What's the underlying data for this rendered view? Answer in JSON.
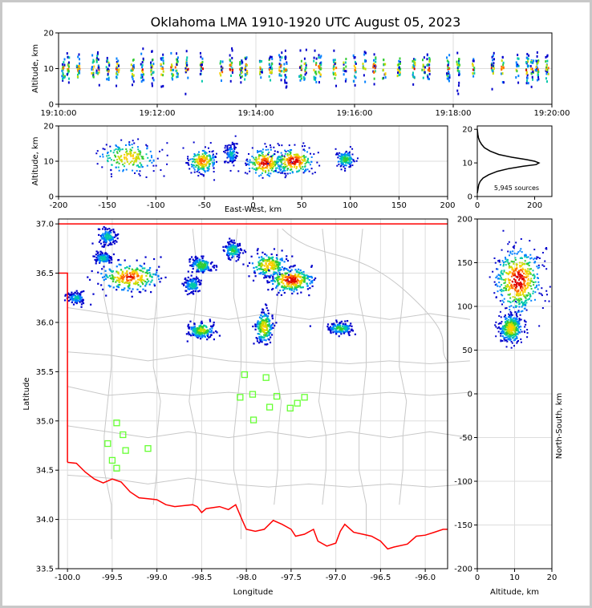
{
  "title": "Oklahoma LMA 1910-1920 UTC August 05, 2023",
  "colors": {
    "frame": "#c8c8c8",
    "axis": "#000000",
    "grid": "#dddddd",
    "state_border": "#ff0000",
    "county_lines": "#c8c8c8",
    "stations": "#66ff33",
    "density_scale": [
      "#0000cc",
      "#0080ff",
      "#00c8aa",
      "#33cc33",
      "#c8dc00",
      "#ffcc00",
      "#ff6600",
      "#dd0000"
    ]
  },
  "chart_data": [
    {
      "id": "time_height",
      "type": "scatter",
      "xlabel": "",
      "ylabel": "Altitude, km",
      "xlim": [
        "19:10:00",
        "19:20:00"
      ],
      "ylim": [
        0,
        20
      ],
      "x_ticks": [
        "19:10:00",
        "19:12:00",
        "19:14:00",
        "19:16:00",
        "19:18:00",
        "19:20:00"
      ],
      "y_ticks": [
        0,
        10,
        20
      ],
      "grid": true,
      "activity_columns_min_after_1910": [
        0.1,
        0.2,
        0.4,
        0.7,
        0.8,
        1.0,
        1.2,
        1.5,
        1.7,
        1.9,
        2.1,
        2.3,
        2.4,
        2.6,
        2.9,
        3.3,
        3.5,
        3.7,
        3.8,
        4.1,
        4.3,
        4.5,
        4.6,
        4.9,
        5.0,
        5.2,
        5.3,
        5.6,
        5.8,
        6.0,
        6.2,
        6.4,
        6.6,
        6.9,
        7.2,
        7.4,
        7.5,
        7.9,
        8.1,
        8.4,
        8.8,
        9.0,
        9.3,
        9.5,
        9.6,
        9.7,
        9.9
      ],
      "altitude_center_km": 10,
      "altitude_spread_km": 3.5
    },
    {
      "id": "ew_height",
      "type": "heatmap",
      "xlabel": "East-West, km",
      "ylabel": "Altitude, km",
      "xlim": [
        -200,
        200
      ],
      "ylim": [
        0,
        20
      ],
      "x_ticks": [
        -200,
        -150,
        -100,
        -50,
        0,
        50,
        100,
        150,
        200
      ],
      "y_ticks": [
        0,
        10,
        20
      ],
      "grid": true,
      "clusters": [
        {
          "x_center": -128,
          "x_spread": 16,
          "alt_center": 11,
          "alt_spread": 2.2,
          "peak": 0.7
        },
        {
          "x_center": -52,
          "x_spread": 7,
          "alt_center": 10,
          "alt_spread": 1.6,
          "peak": 0.85
        },
        {
          "x_center": -22,
          "x_spread": 3,
          "alt_center": 12,
          "alt_spread": 1.5,
          "peak": 0.3
        },
        {
          "x_center": 12,
          "x_spread": 9,
          "alt_center": 9.5,
          "alt_spread": 2.0,
          "peak": 0.95
        },
        {
          "x_center": 42,
          "x_spread": 10,
          "alt_center": 10,
          "alt_spread": 1.8,
          "peak": 1.0
        },
        {
          "x_center": 95,
          "x_spread": 5,
          "alt_center": 10.5,
          "alt_spread": 1.2,
          "peak": 0.45
        }
      ]
    },
    {
      "id": "altitude_histogram",
      "type": "line",
      "xlim": [
        0,
        260
      ],
      "ylim": [
        0,
        21
      ],
      "x_ticks": [
        0,
        200
      ],
      "y_ticks": [
        0,
        10,
        20
      ],
      "annotation": "5,945 sources",
      "x": [
        0,
        2,
        3,
        5,
        10,
        20,
        40,
        70,
        110,
        160,
        205,
        215,
        200,
        170,
        120,
        75,
        45,
        25,
        15,
        8,
        4,
        2,
        0
      ],
      "y": [
        1.0,
        2.0,
        2.5,
        3.5,
        4.5,
        5.5,
        6.5,
        7.5,
        8.3,
        9.0,
        9.5,
        10.0,
        10.5,
        11.0,
        11.7,
        12.5,
        13.5,
        14.5,
        15.5,
        16.5,
        17.5,
        18.5,
        20.0
      ]
    },
    {
      "id": "plan_view",
      "type": "heatmap",
      "xlabel": "Longitude",
      "ylabel": "Latitude",
      "xlim": [
        -100.1,
        -95.75
      ],
      "ylim": [
        33.5,
        37.05
      ],
      "x_ticks": [
        -100.0,
        -99.5,
        -99.0,
        -98.5,
        -98.0,
        -97.5,
        -97.0,
        -96.5,
        -96.0
      ],
      "y_ticks": [
        33.5,
        34.0,
        34.5,
        35.0,
        35.5,
        36.0,
        36.5,
        37.0
      ],
      "grid": true,
      "clusters": [
        {
          "lon": -99.3,
          "lat": 36.46,
          "lon_spread": 0.17,
          "lat_spread": 0.07,
          "peak": 0.9
        },
        {
          "lon": -99.55,
          "lat": 36.87,
          "lon_spread": 0.05,
          "lat_spread": 0.04,
          "peak": 0.35
        },
        {
          "lon": -99.6,
          "lat": 36.65,
          "lon_spread": 0.05,
          "lat_spread": 0.03,
          "peak": 0.35
        },
        {
          "lon": -99.9,
          "lat": 36.25,
          "lon_spread": 0.05,
          "lat_spread": 0.03,
          "peak": 0.3
        },
        {
          "lon": -98.6,
          "lat": 36.38,
          "lon_spread": 0.05,
          "lat_spread": 0.04,
          "peak": 0.35
        },
        {
          "lon": -98.5,
          "lat": 36.58,
          "lon_spread": 0.06,
          "lat_spread": 0.04,
          "peak": 0.5
        },
        {
          "lon": -98.5,
          "lat": 35.92,
          "lon_spread": 0.07,
          "lat_spread": 0.04,
          "peak": 0.6
        },
        {
          "lon": -98.15,
          "lat": 36.73,
          "lon_spread": 0.05,
          "lat_spread": 0.04,
          "peak": 0.45
        },
        {
          "lon": -97.75,
          "lat": 36.58,
          "lon_spread": 0.1,
          "lat_spread": 0.06,
          "peak": 0.75
        },
        {
          "lon": -97.5,
          "lat": 36.43,
          "lon_spread": 0.12,
          "lat_spread": 0.06,
          "peak": 1.0
        },
        {
          "lon": -97.8,
          "lat": 35.95,
          "lon_spread": 0.05,
          "lat_spread": 0.08,
          "peak": 0.7
        },
        {
          "lon": -96.95,
          "lat": 35.94,
          "lon_spread": 0.07,
          "lat_spread": 0.03,
          "peak": 0.45
        }
      ],
      "stations": [
        {
          "lon": -98.02,
          "lat": 35.47
        },
        {
          "lon": -97.78,
          "lat": 35.44
        },
        {
          "lon": -98.07,
          "lat": 35.24
        },
        {
          "lon": -97.93,
          "lat": 35.27
        },
        {
          "lon": -97.66,
          "lat": 35.25
        },
        {
          "lon": -97.35,
          "lat": 35.24
        },
        {
          "lon": -97.43,
          "lat": 35.18
        },
        {
          "lon": -97.74,
          "lat": 35.14
        },
        {
          "lon": -97.51,
          "lat": 35.13
        },
        {
          "lon": -97.92,
          "lat": 35.01
        },
        {
          "lon": -99.45,
          "lat": 34.98
        },
        {
          "lon": -99.38,
          "lat": 34.86
        },
        {
          "lon": -99.55,
          "lat": 34.77
        },
        {
          "lon": -99.35,
          "lat": 34.7
        },
        {
          "lon": -99.1,
          "lat": 34.72
        },
        {
          "lon": -99.5,
          "lat": 34.6
        },
        {
          "lon": -99.45,
          "lat": 34.52
        }
      ],
      "state_border": [
        [
          -100.1,
          37.0
        ],
        [
          -95.75,
          37.0
        ]
      ],
      "panhandle_border": [
        [
          -100.1,
          36.5
        ],
        [
          -100.0,
          36.5
        ],
        [
          -100.0,
          34.58
        ]
      ],
      "red_river": [
        [
          -100.0,
          34.58
        ],
        [
          -99.9,
          34.57
        ],
        [
          -99.8,
          34.48
        ],
        [
          -99.7,
          34.41
        ],
        [
          -99.6,
          34.37
        ],
        [
          -99.5,
          34.41
        ],
        [
          -99.4,
          34.38
        ],
        [
          -99.3,
          34.28
        ],
        [
          -99.2,
          34.22
        ],
        [
          -99.1,
          34.21
        ],
        [
          -99.0,
          34.2
        ],
        [
          -98.9,
          34.15
        ],
        [
          -98.8,
          34.13
        ],
        [
          -98.7,
          34.14
        ],
        [
          -98.6,
          34.15
        ],
        [
          -98.55,
          34.13
        ],
        [
          -98.5,
          34.07
        ],
        [
          -98.45,
          34.11
        ],
        [
          -98.3,
          34.13
        ],
        [
          -98.2,
          34.1
        ],
        [
          -98.12,
          34.15
        ],
        [
          -98.05,
          34.0
        ],
        [
          -98.0,
          33.9
        ],
        [
          -97.9,
          33.88
        ],
        [
          -97.8,
          33.9
        ],
        [
          -97.7,
          33.99
        ],
        [
          -97.6,
          33.95
        ],
        [
          -97.5,
          33.9
        ],
        [
          -97.45,
          33.83
        ],
        [
          -97.35,
          33.85
        ],
        [
          -97.25,
          33.9
        ],
        [
          -97.2,
          33.78
        ],
        [
          -97.1,
          33.73
        ],
        [
          -97.0,
          33.76
        ],
        [
          -96.95,
          33.88
        ],
        [
          -96.9,
          33.95
        ],
        [
          -96.8,
          33.87
        ],
        [
          -96.7,
          33.85
        ],
        [
          -96.6,
          33.83
        ],
        [
          -96.5,
          33.78
        ],
        [
          -96.42,
          33.7
        ],
        [
          -96.35,
          33.72
        ],
        [
          -96.2,
          33.75
        ],
        [
          -96.1,
          33.83
        ],
        [
          -96.0,
          33.84
        ],
        [
          -95.9,
          33.87
        ],
        [
          -95.8,
          33.9
        ],
        [
          -95.75,
          33.9
        ]
      ]
    },
    {
      "id": "altitude_ns",
      "type": "heatmap",
      "xlabel": "Altitude, km",
      "ylabel": "North-South, km",
      "xlim": [
        0,
        20
      ],
      "ylim": [
        -200,
        200
      ],
      "x_ticks": [
        0,
        10,
        20
      ],
      "y_ticks": [
        -200,
        -150,
        -100,
        -50,
        0,
        50,
        100,
        150,
        200
      ],
      "grid": true,
      "clusters": [
        {
          "alt_center": 11,
          "alt_spread": 3.0,
          "ns_center": 130,
          "ns_spread": 18,
          "peak": 1.0
        },
        {
          "alt_center": 9,
          "alt_spread": 1.5,
          "ns_center": 75,
          "ns_spread": 8,
          "peak": 0.7
        }
      ]
    }
  ]
}
